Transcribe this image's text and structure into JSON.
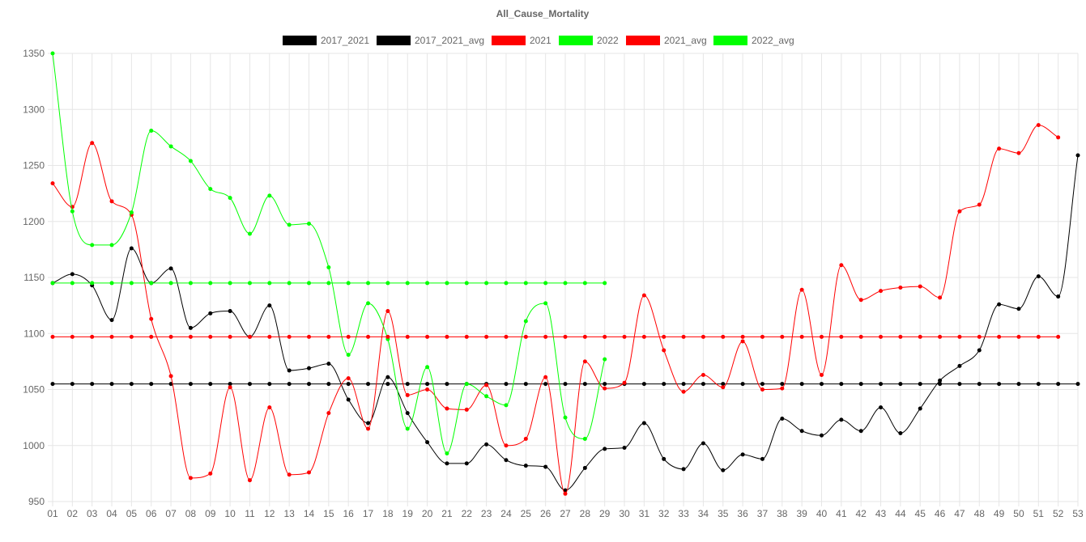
{
  "chart_data": {
    "type": "line",
    "title": "All_Cause_Mortality",
    "xlabel": "",
    "ylabel": "",
    "ylim": [
      950,
      1350
    ],
    "yticks": [
      950,
      1000,
      1050,
      1100,
      1150,
      1200,
      1250,
      1300,
      1350
    ],
    "grid": true,
    "legend_position": "top",
    "categories": [
      "01",
      "02",
      "03",
      "04",
      "05",
      "06",
      "07",
      "08",
      "09",
      "10",
      "11",
      "12",
      "13",
      "14",
      "15",
      "16",
      "17",
      "18",
      "19",
      "20",
      "21",
      "22",
      "23",
      "24",
      "25",
      "26",
      "27",
      "28",
      "29",
      "30",
      "31",
      "32",
      "33",
      "34",
      "35",
      "36",
      "37",
      "38",
      "39",
      "40",
      "41",
      "42",
      "43",
      "44",
      "45",
      "46",
      "47",
      "48",
      "49",
      "50",
      "51",
      "52",
      "53"
    ],
    "series": [
      {
        "name": "2017_2021",
        "color": "#000000",
        "values": [
          1145,
          1153,
          1143,
          1112,
          1176,
          1145,
          1158,
          1105,
          1118,
          1120,
          1097,
          1125,
          1067,
          1069,
          1073,
          1041,
          1020,
          1061,
          1029,
          1003,
          984,
          984,
          1001,
          987,
          982,
          981,
          960,
          980,
          997,
          998,
          1020,
          988,
          979,
          1002,
          978,
          992,
          988,
          1024,
          1013,
          1009,
          1023,
          1013,
          1034,
          1011,
          1033,
          1058,
          1071,
          1085,
          1126,
          1122,
          1151,
          1133,
          1259
        ]
      },
      {
        "name": "2017_2021_avg",
        "color": "#000000",
        "values": [
          1055,
          1055,
          1055,
          1055,
          1055,
          1055,
          1055,
          1055,
          1055,
          1055,
          1055,
          1055,
          1055,
          1055,
          1055,
          1055,
          1055,
          1055,
          1055,
          1055,
          1055,
          1055,
          1055,
          1055,
          1055,
          1055,
          1055,
          1055,
          1055,
          1055,
          1055,
          1055,
          1055,
          1055,
          1055,
          1055,
          1055,
          1055,
          1055,
          1055,
          1055,
          1055,
          1055,
          1055,
          1055,
          1055,
          1055,
          1055,
          1055,
          1055,
          1055,
          1055,
          1055
        ]
      },
      {
        "name": "2021",
        "color": "#ff0000",
        "values": [
          1234,
          1213,
          1270,
          1218,
          1206,
          1113,
          1062,
          971,
          975,
          1052,
          969,
          1034,
          974,
          976,
          1029,
          1060,
          1015,
          1120,
          1045,
          1050,
          1033,
          1032,
          1054,
          1000,
          1006,
          1061,
          957,
          1075,
          1051,
          1056,
          1134,
          1085,
          1048,
          1063,
          1052,
          1093,
          1050,
          1051,
          1139,
          1063,
          1161,
          1130,
          1138,
          1141,
          1142,
          1132,
          1209,
          1215,
          1265,
          1261,
          1286,
          1275,
          null
        ]
      },
      {
        "name": "2022",
        "color": "#00ff00",
        "values": [
          1350,
          1209,
          1179,
          1179,
          1208,
          1281,
          1267,
          1254,
          1229,
          1221,
          1189,
          1223,
          1197,
          1198,
          1159,
          1081,
          1127,
          1095,
          1015,
          1070,
          993,
          1055,
          1044,
          1036,
          1111,
          1127,
          1025,
          1006,
          1077,
          null,
          null,
          null,
          null,
          null,
          null,
          null,
          null,
          null,
          null,
          null,
          null,
          null,
          null,
          null,
          null,
          null,
          null,
          null,
          null,
          null,
          null,
          null,
          null
        ]
      },
      {
        "name": "2021_avg",
        "color": "#ff0000",
        "values": [
          1097,
          1097,
          1097,
          1097,
          1097,
          1097,
          1097,
          1097,
          1097,
          1097,
          1097,
          1097,
          1097,
          1097,
          1097,
          1097,
          1097,
          1097,
          1097,
          1097,
          1097,
          1097,
          1097,
          1097,
          1097,
          1097,
          1097,
          1097,
          1097,
          1097,
          1097,
          1097,
          1097,
          1097,
          1097,
          1097,
          1097,
          1097,
          1097,
          1097,
          1097,
          1097,
          1097,
          1097,
          1097,
          1097,
          1097,
          1097,
          1097,
          1097,
          1097,
          1097,
          null
        ]
      },
      {
        "name": "2022_avg",
        "color": "#00ff00",
        "values": [
          1145,
          1145,
          1145,
          1145,
          1145,
          1145,
          1145,
          1145,
          1145,
          1145,
          1145,
          1145,
          1145,
          1145,
          1145,
          1145,
          1145,
          1145,
          1145,
          1145,
          1145,
          1145,
          1145,
          1145,
          1145,
          1145,
          1145,
          1145,
          1145,
          null,
          null,
          null,
          null,
          null,
          null,
          null,
          null,
          null,
          null,
          null,
          null,
          null,
          null,
          null,
          null,
          null,
          null,
          null,
          null,
          null,
          null,
          null,
          null
        ]
      }
    ]
  }
}
